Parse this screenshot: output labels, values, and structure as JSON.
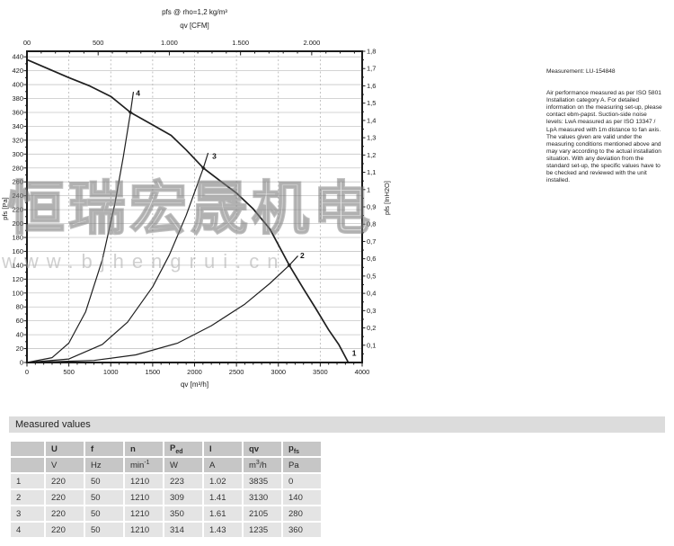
{
  "watermark": {
    "cjk_text": "恒瑞宏晟机电",
    "url_text": "www.bjhengrui.cn"
  },
  "notes": {
    "measurement": "Measurement: LU-154848",
    "paragraph": "Air performance measured as per ISO 5801\nInstallation category A. For detailed\ninformation on the measuring set-up, please\ncontact ebm-papst. Suction-side noise\nlevels: LwA measured as per ISO 13347 /\nLpA measured with 1m distance to fan axis.\nThe values given are valid under the\nmeasuring conditions mentioned above and\nmay vary according to the actual installation\nsituation. With any deviation from the\nstandard set-up, the specific values have to\nbe checked and reviewed with the unit\ninstalled."
  },
  "chart_data": {
    "type": "line",
    "title": "pfs @ rho=1,2 kg/m³",
    "top_axis_label": "qv [CFM]",
    "top_ticks": {
      "values_cfm": [
        0,
        500,
        1000,
        1500,
        2000
      ],
      "labels": [
        "00",
        "500",
        "1.000",
        "1.500",
        "2.000"
      ],
      "m3h_per_cfm": 1.699,
      "minor_step_cfm": 100,
      "max_cfm": 2350
    },
    "xlabel": "qv [m³/h]",
    "xlim": [
      0,
      4000
    ],
    "xticks": {
      "values": [
        0,
        500,
        1000,
        1500,
        2000,
        2500,
        3000,
        3500,
        4000
      ],
      "labels": [
        "0",
        "500",
        "1000",
        "1500",
        "2000",
        "2500",
        "3000",
        "3500",
        "4000"
      ],
      "minor_step": 100
    },
    "ylabel_left": "pfs [Pa]",
    "ylim_left": [
      0,
      448
    ],
    "yticks_left": {
      "values": [
        0,
        20,
        40,
        60,
        80,
        100,
        120,
        140,
        160,
        180,
        200,
        220,
        240,
        260,
        280,
        300,
        320,
        340,
        360,
        380,
        400,
        420,
        440
      ],
      "labels": [
        "0",
        "20",
        "40",
        "60",
        "80",
        "100",
        "120",
        "140",
        "160",
        "180",
        "200",
        "220",
        "240",
        "260",
        "280",
        "300",
        "320",
        "340",
        "360",
        "380",
        "400",
        "420",
        "440"
      ],
      "minor_step": 10
    },
    "ylabel_right": "pfs [InH2O]",
    "ylim_right": [
      0,
      1.8
    ],
    "yticks_right": {
      "values": [
        0.1,
        0.2,
        0.3,
        0.4,
        0.5,
        0.6,
        0.7,
        0.8,
        0.9,
        1.0,
        1.1,
        1.2,
        1.3,
        1.4,
        1.5,
        1.6,
        1.7,
        1.8
      ],
      "labels": [
        "0,1",
        "0,2",
        "0,3",
        "0,4",
        "0,5",
        "0,6",
        "0,7",
        "0,8",
        "0,9",
        "1",
        "1,1",
        "1,2",
        "1,3",
        "1,4",
        "1,5",
        "1,6",
        "1,7",
        "1,8"
      ],
      "minor_step": 0.05
    },
    "grid": {
      "h_step_pa": 20,
      "v_step_m3h": 500
    },
    "series": [
      {
        "name": "fan-curve",
        "points": [
          [
            0,
            436
          ],
          [
            250,
            423
          ],
          [
            500,
            410
          ],
          [
            750,
            398
          ],
          [
            1000,
            383
          ],
          [
            1235,
            360
          ],
          [
            1500,
            342
          ],
          [
            1720,
            327
          ],
          [
            1900,
            306
          ],
          [
            2105,
            280
          ],
          [
            2300,
            262
          ],
          [
            2500,
            244
          ],
          [
            2700,
            221
          ],
          [
            2900,
            192
          ],
          [
            3130,
            140
          ],
          [
            3300,
            106
          ],
          [
            3450,
            77
          ],
          [
            3600,
            47
          ],
          [
            3720,
            26
          ],
          [
            3835,
            0
          ]
        ]
      },
      {
        "name": "load-line-4",
        "points": [
          [
            0,
            0
          ],
          [
            300,
            7
          ],
          [
            500,
            28
          ],
          [
            700,
            73
          ],
          [
            900,
            148
          ],
          [
            1050,
            229
          ],
          [
            1150,
            296
          ],
          [
            1235,
            360
          ],
          [
            1270,
            389
          ]
        ]
      },
      {
        "name": "load-line-3",
        "points": [
          [
            0,
            0
          ],
          [
            500,
            5
          ],
          [
            900,
            26
          ],
          [
            1200,
            58
          ],
          [
            1500,
            109
          ],
          [
            1700,
            155
          ],
          [
            1900,
            212
          ],
          [
            2105,
            280
          ],
          [
            2160,
            301
          ]
        ]
      },
      {
        "name": "load-line-2",
        "points": [
          [
            0,
            0
          ],
          [
            800,
            3
          ],
          [
            1300,
            11
          ],
          [
            1800,
            28
          ],
          [
            2200,
            53
          ],
          [
            2600,
            84
          ],
          [
            2900,
            114
          ],
          [
            3130,
            140
          ],
          [
            3230,
            153
          ]
        ]
      }
    ],
    "operating_points": [
      {
        "label": "1",
        "qv": 3835,
        "pfs": 0
      },
      {
        "label": "2",
        "qv": 3130,
        "pfs": 140
      },
      {
        "label": "3",
        "qv": 2105,
        "pfs": 280
      },
      {
        "label": "4",
        "qv": 1235,
        "pfs": 360
      }
    ],
    "point_labels": [
      {
        "text": "4",
        "qv": 1300,
        "pfs": 384
      },
      {
        "text": "3",
        "qv": 2210,
        "pfs": 293
      },
      {
        "text": "2",
        "qv": 3260,
        "pfs": 150
      },
      {
        "text": "1",
        "qv": 3880,
        "pfs": 10
      }
    ],
    "marker_points": [
      {
        "qv": 1235,
        "pfs": 360
      },
      {
        "qv": 2105,
        "pfs": 280
      },
      {
        "qv": 3130,
        "pfs": 140
      }
    ]
  },
  "table": {
    "title": "Measured values",
    "columns": [
      {
        "label": "",
        "sub": "",
        "unit": []
      },
      {
        "label": "U",
        "sub": "",
        "unit": [
          {
            "t": "V"
          }
        ]
      },
      {
        "label": "f",
        "sub": "",
        "unit": [
          {
            "t": "Hz"
          }
        ]
      },
      {
        "label": "n",
        "sub": "",
        "unit": [
          {
            "t": "min"
          },
          {
            "t": "-1",
            "sup": true
          }
        ]
      },
      {
        "label": "P",
        "sub": "ed",
        "unit": [
          {
            "t": "W"
          }
        ]
      },
      {
        "label": "I",
        "sub": "",
        "unit": [
          {
            "t": "A"
          }
        ]
      },
      {
        "label": "qv",
        "sub": "",
        "unit": [
          {
            "t": "m"
          },
          {
            "t": "3",
            "sup": true
          },
          {
            "t": "/h"
          }
        ]
      },
      {
        "label": "p",
        "sub": "fs",
        "unit": [
          {
            "t": "Pa"
          }
        ]
      }
    ],
    "rows": [
      [
        "1",
        "220",
        "50",
        "1210",
        "223",
        "1.02",
        "3835",
        "0"
      ],
      [
        "2",
        "220",
        "50",
        "1210",
        "309",
        "1.41",
        "3130",
        "140"
      ],
      [
        "3",
        "220",
        "50",
        "1210",
        "350",
        "1.61",
        "2105",
        "280"
      ],
      [
        "4",
        "220",
        "50",
        "1210",
        "314",
        "1.43",
        "1235",
        "360"
      ]
    ]
  }
}
